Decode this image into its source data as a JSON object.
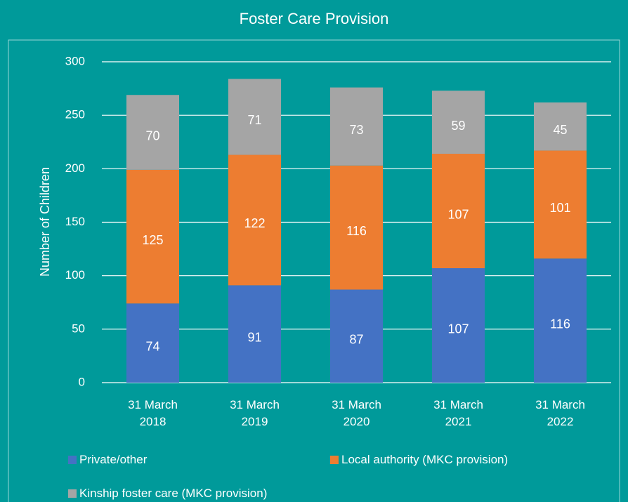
{
  "chart_data": {
    "type": "bar",
    "stacked": true,
    "title": "Foster Care Provision",
    "ylabel": "Number of Children",
    "categories": [
      "31 March 2018",
      "31 March 2019",
      "31 March 2020",
      "31 March 2021",
      "31 March 2022"
    ],
    "series": [
      {
        "name": "Private/other",
        "color": "#4472c4",
        "values": [
          74,
          91,
          87,
          107,
          116
        ]
      },
      {
        "name": "Local authority (MKC provision)",
        "color": "#ed7d31",
        "values": [
          125,
          122,
          116,
          107,
          101
        ]
      },
      {
        "name": "Kinship foster care (MKC provision)",
        "color": "#a5a5a5",
        "values": [
          70,
          71,
          73,
          59,
          45
        ]
      }
    ],
    "ylim": [
      0,
      300
    ],
    "yticks": [
      0,
      50,
      100,
      150,
      200,
      250,
      300
    ],
    "grid": true,
    "legend": "bottom"
  }
}
